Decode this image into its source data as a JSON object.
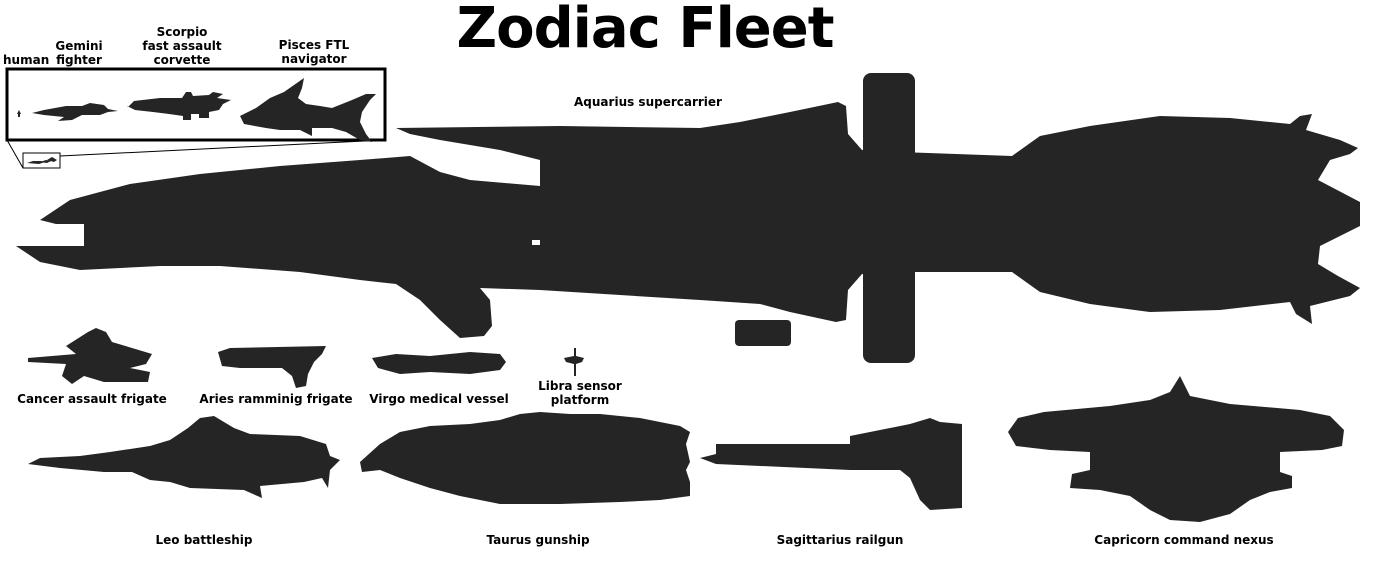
{
  "title": "Zodiac Fleet",
  "colors": {
    "silhouette": "#252525",
    "background": "#ffffff",
    "text": "#000000"
  },
  "inset": {
    "human": "human",
    "gemini": [
      "Gemini",
      "fighter"
    ],
    "scorpio": [
      "Scorpio",
      "fast assault",
      "corvette"
    ],
    "pisces": [
      "Pisces FTL",
      "navigator"
    ]
  },
  "ships": {
    "aquarius": "Aquarius supercarrier",
    "cancer": "Cancer assault frigate",
    "aries": "Aries ramminig frigate",
    "virgo": "Virgo medical vessel",
    "libra": [
      "Libra sensor",
      "platform"
    ],
    "leo": "Leo battleship",
    "taurus": "Taurus gunship",
    "sagittarius": "Sagittarius railgun",
    "capricorn": "Capricorn command nexus"
  }
}
